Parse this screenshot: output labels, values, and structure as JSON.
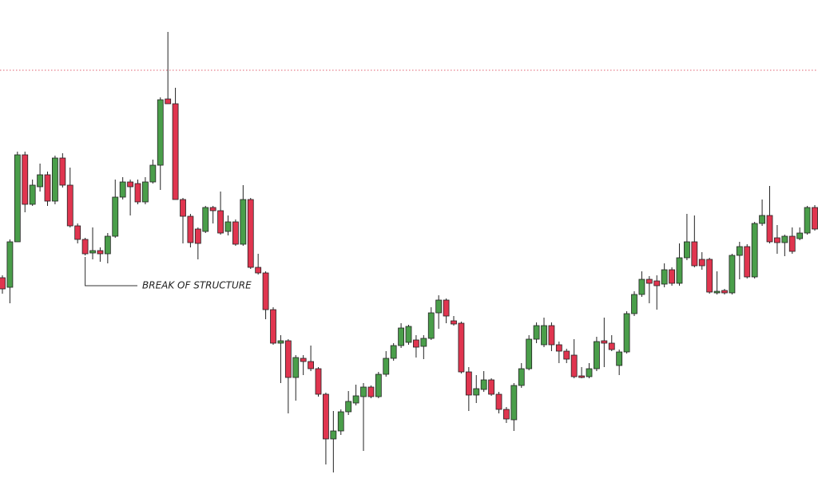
{
  "chart_data": {
    "type": "candlestick",
    "annotation": "BREAK OF STRUCTURE",
    "ylim": [
      0,
      614
    ],
    "up_color": "#4a9e4a",
    "down_color": "#e0354f",
    "reference_line": 526,
    "reference_color": "#e06070",
    "open": [
      266,
      254,
      311,
      420,
      358,
      380,
      395,
      362,
      416,
      382,
      331,
      314,
      297,
      300,
      296,
      318,
      367,
      386,
      384,
      361,
      386,
      407,
      490,
      484,
      364,
      343,
      327,
      324,
      354,
      350,
      324,
      336,
      308,
      364,
      279,
      272,
      226,
      184,
      187,
      141,
      165,
      161,
      152,
      120,
      64,
      74,
      98,
      109,
      117,
      129,
      117,
      145,
      165,
      181,
      185,
      188,
      180,
      190,
      222,
      238,
      212,
      209,
      148,
      119,
      126,
      138,
      120,
      101,
      88,
      131,
      152,
      189,
      182,
      206,
      182,
      174,
      169,
      143,
      142,
      152,
      187,
      184,
      156,
      173,
      221,
      245,
      264,
      262,
      258,
      276,
      259,
      291,
      311,
      289,
      289,
      247,
      250,
      247,
      294,
      305,
      267,
      334,
      344,
      316,
      310,
      318,
      315,
      322,
      354
    ],
    "high": [
      269,
      314,
      424,
      424,
      389,
      409,
      399,
      419,
      422,
      404,
      334,
      316,
      329,
      304,
      322,
      389,
      392,
      389,
      389,
      392,
      414,
      492,
      574,
      504,
      366,
      346,
      329,
      356,
      356,
      374,
      344,
      339,
      382,
      366,
      296,
      274,
      229,
      194,
      189,
      169,
      169,
      181,
      154,
      122,
      99,
      101,
      124,
      132,
      134,
      131,
      148,
      174,
      184,
      209,
      207,
      194,
      194,
      229,
      244,
      240,
      218,
      211,
      154,
      144,
      149,
      140,
      123,
      104,
      134,
      159,
      194,
      210,
      216,
      210,
      186,
      177,
      189,
      154,
      159,
      192,
      216,
      194,
      176,
      224,
      249,
      274,
      268,
      269,
      284,
      279,
      309,
      346,
      344,
      298,
      291,
      274,
      252,
      296,
      311,
      308,
      336,
      364,
      381,
      332,
      320,
      329,
      329,
      356,
      357
    ],
    "low": [
      246,
      234,
      311,
      348,
      356,
      374,
      356,
      358,
      379,
      329,
      309,
      294,
      289,
      286,
      284,
      316,
      364,
      344,
      358,
      358,
      384,
      376,
      484,
      364,
      309,
      304,
      289,
      322,
      334,
      320,
      319,
      306,
      306,
      277,
      270,
      214,
      182,
      134,
      96,
      112,
      144,
      149,
      117,
      32,
      22,
      69,
      94,
      106,
      49,
      115,
      115,
      142,
      162,
      178,
      182,
      166,
      164,
      188,
      202,
      209,
      206,
      146,
      99,
      109,
      123,
      118,
      96,
      84,
      74,
      128,
      150,
      184,
      179,
      174,
      159,
      159,
      140,
      140,
      140,
      149,
      154,
      174,
      144,
      171,
      218,
      242,
      234,
      226,
      254,
      256,
      256,
      288,
      279,
      276,
      246,
      245,
      245,
      245,
      264,
      265,
      265,
      331,
      309,
      296,
      293,
      296,
      313,
      320,
      325
    ],
    "close": [
      252,
      311,
      420,
      358,
      382,
      395,
      362,
      416,
      382,
      331,
      314,
      296,
      300,
      296,
      318,
      367,
      386,
      380,
      361,
      386,
      407,
      489,
      484,
      364,
      343,
      310,
      309,
      354,
      350,
      322,
      336,
      308,
      364,
      279,
      272,
      226,
      184,
      187,
      141,
      166,
      161,
      152,
      120,
      64,
      74,
      98,
      111,
      118,
      129,
      117,
      145,
      165,
      181,
      203,
      205,
      179,
      190,
      222,
      238,
      218,
      208,
      148,
      119,
      127,
      138,
      120,
      101,
      89,
      131,
      152,
      189,
      206,
      206,
      182,
      174,
      164,
      142,
      141,
      152,
      186,
      184,
      176,
      173,
      221,
      245,
      264,
      259,
      256,
      276,
      259,
      291,
      311,
      281,
      281,
      248,
      249,
      247,
      294,
      305,
      267,
      334,
      344,
      311,
      310,
      318,
      299,
      322,
      354,
      327
    ]
  }
}
